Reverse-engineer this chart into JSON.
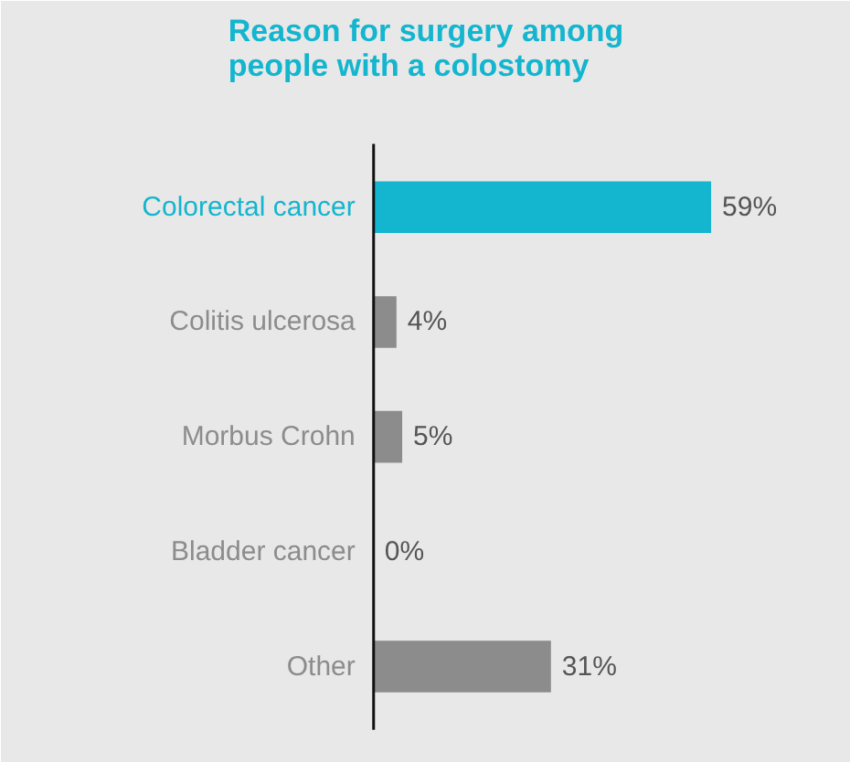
{
  "chart_data": {
    "type": "bar",
    "orientation": "horizontal",
    "title": "Reason for surgery among\npeople with a colostomy",
    "categories": [
      "Colorectal cancer",
      "Colitis ulcerosa",
      "Morbus Crohn",
      "Bladder cancer",
      "Other"
    ],
    "values": [
      59,
      4,
      5,
      0,
      31
    ],
    "colors": [
      "#13b5cf",
      "#8c8c8c",
      "#8c8c8c",
      "#8c8c8c",
      "#8c8c8c"
    ],
    "data_labels": true,
    "value_labels": [
      "59%",
      "4%",
      "5%",
      "0%",
      "31%"
    ]
  }
}
